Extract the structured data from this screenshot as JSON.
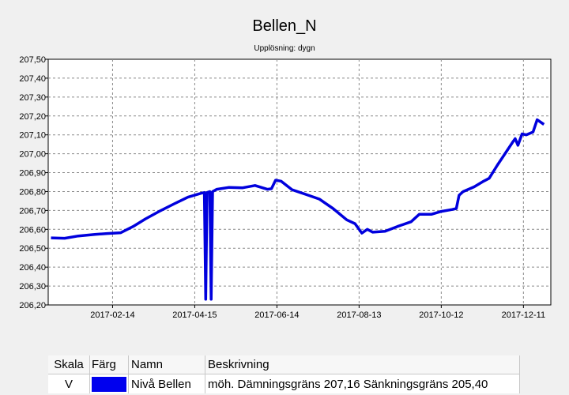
{
  "chart_data": {
    "type": "line",
    "title": "Bellen_N",
    "subtitle": "Upplösning: dygn",
    "xlabel": "",
    "ylabel": "",
    "x_start": "2016-12-29",
    "x_end": "2017-12-31",
    "xticks": [
      "2017-02-14",
      "2017-04-15",
      "2017-06-14",
      "2017-08-13",
      "2017-10-12",
      "2017-12-11"
    ],
    "ylim": [
      206.2,
      207.5
    ],
    "yticks": [
      "206,20",
      "206,30",
      "206,40",
      "206,50",
      "206,60",
      "206,70",
      "206,80",
      "206,90",
      "207,00",
      "207,10",
      "207,20",
      "207,30",
      "207,40",
      "207,50"
    ],
    "grid": true,
    "series": [
      {
        "name": "Nivå Bellen",
        "color": "#0000dd",
        "points": [
          [
            "2016-12-31",
            206.555
          ],
          [
            "2017-01-10",
            206.553
          ],
          [
            "2017-01-20",
            206.565
          ],
          [
            "2017-02-01",
            206.573
          ],
          [
            "2017-02-10",
            206.578
          ],
          [
            "2017-02-20",
            206.582
          ],
          [
            "2017-03-01",
            206.615
          ],
          [
            "2017-03-10",
            206.655
          ],
          [
            "2017-03-20",
            206.695
          ],
          [
            "2017-03-31",
            206.735
          ],
          [
            "2017-04-10",
            206.77
          ],
          [
            "2017-04-19",
            206.79
          ],
          [
            "2017-04-22",
            206.795
          ],
          [
            "2017-04-23",
            206.23
          ],
          [
            "2017-04-24",
            206.795
          ],
          [
            "2017-04-26",
            206.8
          ],
          [
            "2017-04-27",
            206.23
          ],
          [
            "2017-04-28",
            206.8
          ],
          [
            "2017-05-01",
            206.812
          ],
          [
            "2017-05-10",
            206.822
          ],
          [
            "2017-05-20",
            206.82
          ],
          [
            "2017-05-29",
            206.832
          ],
          [
            "2017-06-07",
            206.812
          ],
          [
            "2017-06-10",
            206.815
          ],
          [
            "2017-06-13",
            206.86
          ],
          [
            "2017-06-17",
            206.855
          ],
          [
            "2017-06-25",
            206.81
          ],
          [
            "2017-07-05",
            206.785
          ],
          [
            "2017-07-15",
            206.76
          ],
          [
            "2017-07-25",
            206.71
          ],
          [
            "2017-08-04",
            206.65
          ],
          [
            "2017-08-10",
            206.63
          ],
          [
            "2017-08-15",
            206.58
          ],
          [
            "2017-08-19",
            206.6
          ],
          [
            "2017-08-23",
            206.585
          ],
          [
            "2017-09-01",
            206.59
          ],
          [
            "2017-09-10",
            206.615
          ],
          [
            "2017-09-20",
            206.64
          ],
          [
            "2017-09-26",
            206.68
          ],
          [
            "2017-10-05",
            206.68
          ],
          [
            "2017-10-12",
            206.695
          ],
          [
            "2017-10-20",
            206.705
          ],
          [
            "2017-10-23",
            206.71
          ],
          [
            "2017-10-25",
            206.78
          ],
          [
            "2017-10-28",
            206.8
          ],
          [
            "2017-11-05",
            206.825
          ],
          [
            "2017-11-12",
            206.855
          ],
          [
            "2017-11-16",
            206.87
          ],
          [
            "2017-11-22",
            206.94
          ],
          [
            "2017-11-28",
            207.005
          ],
          [
            "2017-12-03",
            207.06
          ],
          [
            "2017-12-05",
            207.08
          ],
          [
            "2017-12-07",
            207.045
          ],
          [
            "2017-12-10",
            207.105
          ],
          [
            "2017-12-13",
            207.1
          ],
          [
            "2017-12-18",
            207.115
          ],
          [
            "2017-12-21",
            207.18
          ],
          [
            "2017-12-26",
            207.155
          ]
        ]
      }
    ]
  },
  "legend": {
    "headers": {
      "scale": "Skala",
      "color": "Färg",
      "name": "Namn",
      "description": "Beskrivning"
    },
    "rows": [
      {
        "scale": "V",
        "color": "#0000ee",
        "name": "Nivå Bellen",
        "description": "möh. Dämningsgräns 207,16 Sänkningsgräns 205,40"
      }
    ]
  }
}
